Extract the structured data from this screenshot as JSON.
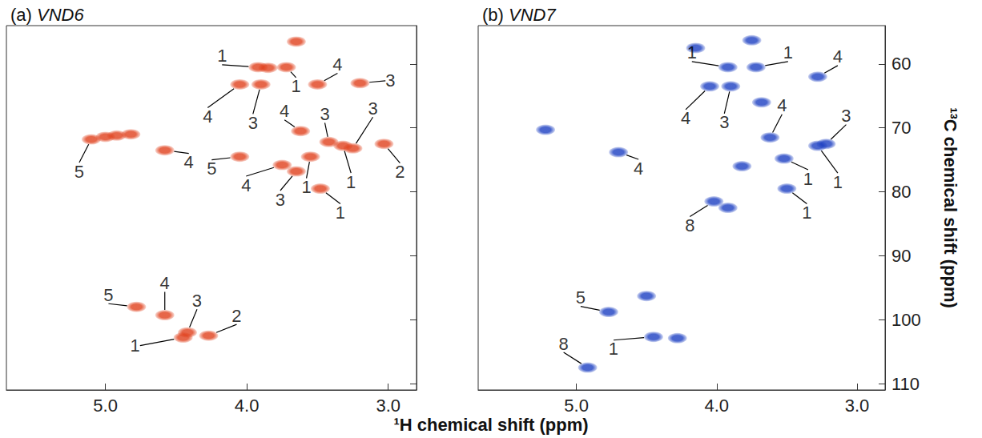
{
  "chart_data": [
    {
      "type": "scatter",
      "title": "(a) VND6",
      "xlabel": "¹H chemical shift (ppm)",
      "x": [
        3.65,
        3.92,
        3.72,
        4.05,
        3.9,
        3.5,
        3.2,
        3.62,
        3.42,
        3.25,
        3.03,
        3.55,
        3.32,
        4.05,
        3.75,
        3.65,
        3.48,
        5.1,
        4.58,
        4.78,
        4.58,
        4.42,
        4.45,
        4.27,
        5.0,
        4.92,
        4.82,
        3.85
      ],
      "y": [
        56.5,
        60.5,
        60.5,
        63.2,
        63.2,
        63.2,
        63.0,
        70.5,
        72.2,
        73.2,
        72.5,
        74.5,
        72.8,
        74.5,
        75.8,
        76.8,
        79.5,
        71.8,
        73.5,
        98.0,
        99.3,
        102.0,
        102.8,
        102.5,
        71.4,
        71.2,
        71.0,
        60.6
      ],
      "labels": [
        null,
        "1",
        "1",
        "4",
        "3",
        "4",
        "3",
        "4",
        "3",
        "3",
        "2",
        "1",
        "1",
        "5",
        "4",
        "3",
        "1",
        "5",
        "4",
        "5",
        "4",
        "3",
        "1",
        "2",
        null,
        null,
        null,
        null
      ],
      "color": "#e0401c",
      "xlim": [
        5.7,
        2.8
      ],
      "xticks": [
        {
          "value": 5,
          "label": "5.0"
        },
        {
          "value": 4,
          "label": "4.0"
        },
        {
          "value": 3,
          "label": "3.0"
        }
      ],
      "ylim": [
        111,
        54
      ],
      "yticks": [
        60,
        70,
        80,
        90,
        100,
        110
      ],
      "tick_labels": "x",
      "grid": false
    },
    {
      "type": "scatter",
      "title": "(b) VND7",
      "ylabel": "¹³C chemical shift (ppm)",
      "x": [
        3.75,
        3.92,
        3.72,
        4.05,
        3.9,
        3.28,
        3.62,
        3.22,
        3.52,
        3.28,
        3.5,
        4.02,
        4.7,
        4.77,
        4.45,
        4.92,
        5.22,
        4.5,
        3.92,
        3.82,
        3.68,
        4.28,
        4.15
      ],
      "y": [
        56.3,
        60.5,
        60.5,
        63.5,
        63.5,
        62.0,
        71.5,
        72.5,
        74.8,
        72.8,
        79.5,
        81.5,
        73.8,
        98.8,
        102.7,
        107.5,
        70.3,
        96.3,
        82.5,
        76.0,
        66.0,
        102.9,
        57.5
      ],
      "labels": [
        null,
        "1",
        "1",
        "4",
        "3",
        "4",
        "4",
        "3",
        "1",
        "1",
        "1",
        "8",
        "4",
        "5",
        "1",
        "8",
        null,
        null,
        null,
        null,
        null,
        null,
        null
      ],
      "color": "#1c3fc2",
      "xlim": [
        5.7,
        2.8
      ],
      "xticks": [
        {
          "value": 5,
          "label": "5.0"
        },
        {
          "value": 4,
          "label": "4.0"
        },
        {
          "value": 3,
          "label": "3.0"
        }
      ],
      "ylim": [
        111,
        54
      ],
      "yticks": [
        60,
        70,
        80,
        90,
        100,
        110
      ],
      "grid": false
    }
  ]
}
